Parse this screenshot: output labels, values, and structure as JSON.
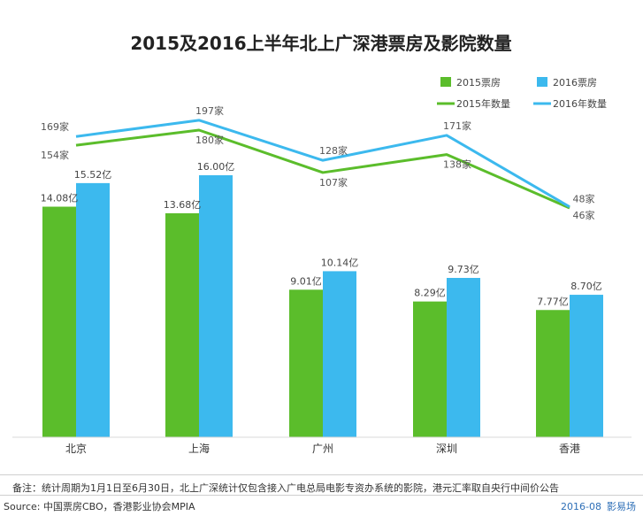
{
  "chart_data": {
    "type": "bar",
    "title": "2015及2016上半年北上广深港票房及影院数量",
    "categories": [
      "北京",
      "上海",
      "广州",
      "深圳",
      "香港"
    ],
    "series": [
      {
        "name": "2015票房",
        "kind": "bar",
        "color": "#5bbd2b",
        "values": [
          14.08,
          13.68,
          9.01,
          8.29,
          7.77
        ],
        "labels": [
          "14.08亿",
          "13.68亿",
          "9.01亿",
          "8.29亿",
          "7.77亿"
        ]
      },
      {
        "name": "2016票房",
        "kind": "bar",
        "color": "#3cb9ee",
        "values": [
          15.52,
          16.0,
          10.14,
          9.73,
          8.7
        ],
        "labels": [
          "15.52亿",
          "16.00亿",
          "10.14亿",
          "9.73亿",
          "8.70亿"
        ]
      },
      {
        "name": "2015年数量",
        "kind": "line",
        "color": "#5bbd2b",
        "values": [
          154,
          180,
          107,
          138,
          46
        ],
        "labels": [
          "154家",
          "180家",
          "107家",
          "138家",
          "46家"
        ]
      },
      {
        "name": "2016年数量",
        "kind": "line",
        "color": "#3cb9ee",
        "values": [
          169,
          197,
          128,
          171,
          48
        ],
        "labels": [
          "169家",
          "197家",
          "128家",
          "171家",
          "48家"
        ]
      }
    ],
    "legend_position": "top-right",
    "grid": false
  },
  "footer": {
    "note": "备注：统计周期为1月1日至6月30日，北上广深统计仅包含接入广电总局电影专资办系统的影院，港元汇率取自央行中间价公告",
    "source": "Source: 中国票房CBO，香港影业协会MPIA",
    "date": "2016-08",
    "brand": "影易场"
  }
}
